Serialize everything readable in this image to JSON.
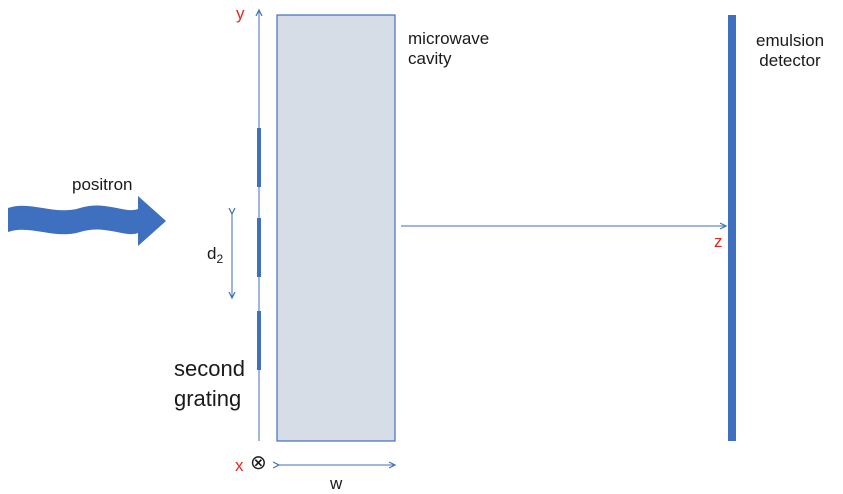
{
  "axes": {
    "y": "y",
    "x": "x",
    "z": "z"
  },
  "labels": {
    "positron": "positron",
    "second_grating": "second\ngrating",
    "microwave_cavity": "microwave\ncavity",
    "emulsion_detector": "emulsion\ndetector",
    "d_main": "d",
    "d_sub": "2",
    "w": "w",
    "x_symbol": "⊗"
  },
  "colors": {
    "accent_blue": "#3f6fbf",
    "axis_red": "#e8281e",
    "cavity_fill": "#d6dde6",
    "text": "#1a1a1a"
  }
}
